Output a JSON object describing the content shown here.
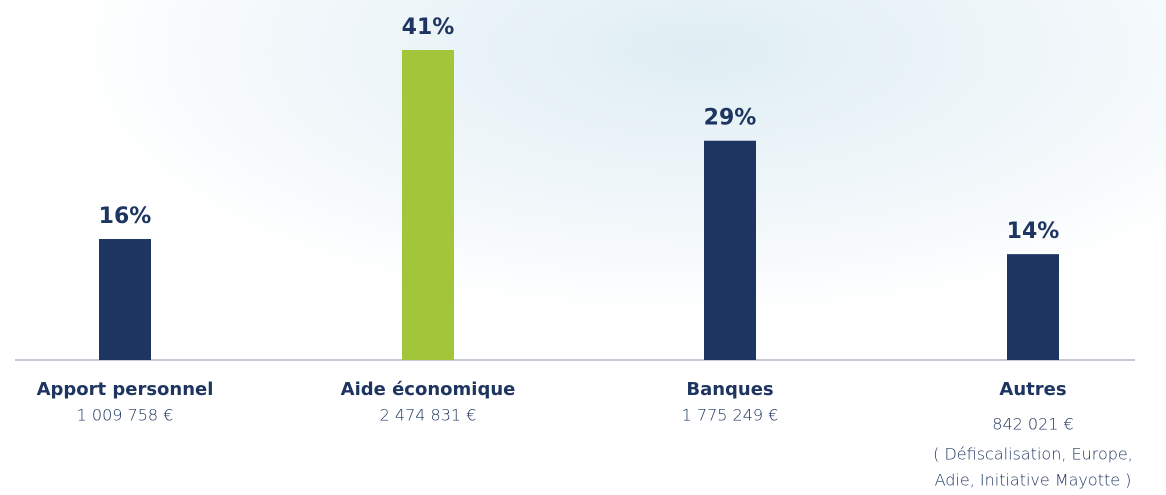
{
  "chart_data": {
    "type": "bar",
    "categories": [
      "Apport personnel",
      "Aide économique",
      "Banques",
      "Autres"
    ],
    "amounts": [
      "1 009 758 €",
      "2 474 831 €",
      "1 775 249 €",
      "842 021 €"
    ],
    "note": [
      "( Défiscalisation, Europe,",
      "Adie, Initiative Mayotte )"
    ],
    "values": [
      16,
      41,
      29,
      14
    ],
    "value_labels": [
      "16%",
      "41%",
      "29%",
      "14%"
    ],
    "colors": [
      "#1d3560",
      "#a2c53a",
      "#1d3560",
      "#1d3560"
    ]
  }
}
